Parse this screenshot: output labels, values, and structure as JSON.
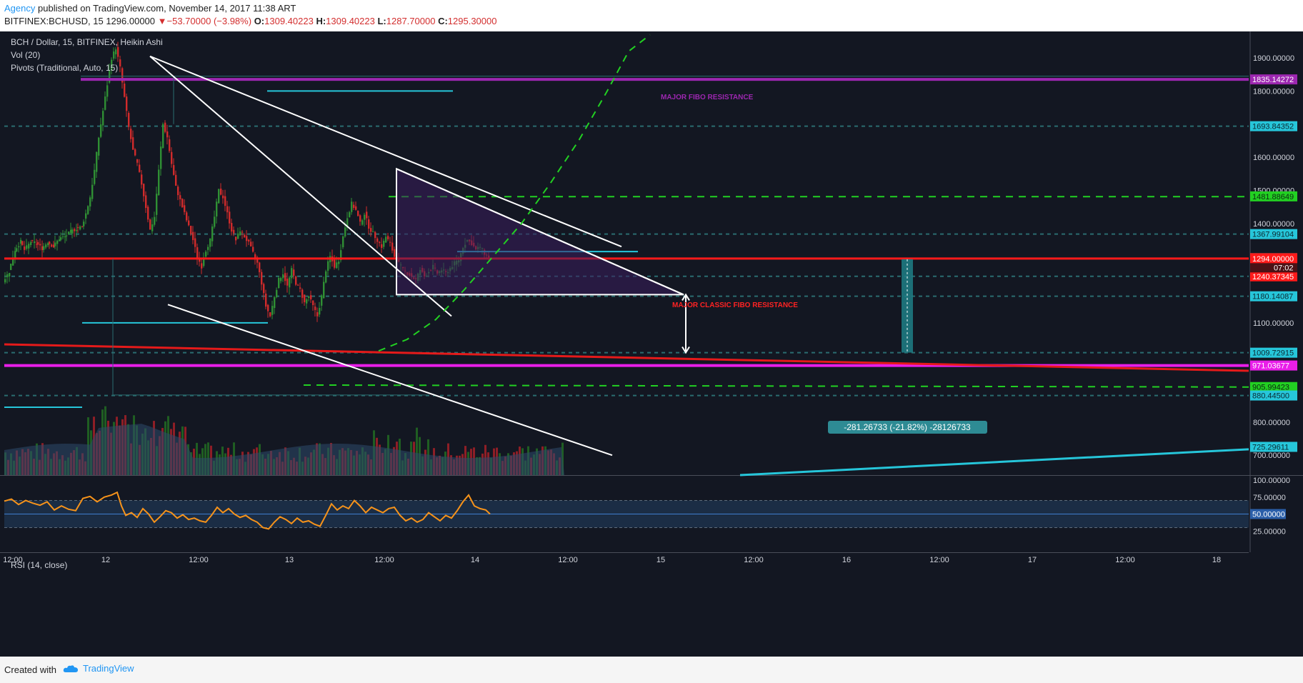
{
  "header": {
    "author": "Agency",
    "published_text": "published on TradingView.com, November 14, 2017 11:38 ART",
    "symbol": "BITFINEX:BCHUSD, 15",
    "price": "1296.00000",
    "change_arrow": "▼",
    "change": "−53.70000 (−3.98%)",
    "o_label": "O:",
    "o_value": "1309.40223",
    "h_label": "H:",
    "h_value": "1309.40223",
    "l_label": "L:",
    "l_value": "1287.70000",
    "c_label": "C:",
    "c_value": "1295.30000"
  },
  "legend": {
    "main": "BCH / Dollar, 15, BITFINEX, Heikin Ashi",
    "vol": "Vol (20)",
    "pivots": "Pivots (Traditional, Auto, 15)",
    "rsi": "RSI (14, close)"
  },
  "annotations": {
    "major_fibo": "MAJOR FIBO RESISTANCE",
    "major_classic": "MAJOR CLASSIC FIBO RESISTANCE",
    "measure": "-281.26733 (-21.82%) -28126733",
    "countdown": "07:02"
  },
  "footer": {
    "created_with": "Created with",
    "brand": "TradingView"
  },
  "colors": {
    "background": "#131722",
    "up": "#2e7d32",
    "down": "#c62828",
    "fibo_purple": "#9c27b0",
    "magenta": "#e91ee9",
    "red_level": "#ff1a1a",
    "green_dash": "#22d022",
    "cyan": "#26c6da",
    "rsi_line": "#f7931a"
  },
  "chart_data": {
    "type": "candlestick",
    "symbol": "BITFINEX:BCHUSD",
    "interval": "15",
    "style": "Heikin Ashi",
    "ylim": [
      640,
      1980
    ],
    "y_ticks": [
      "1900.00000",
      "1800.00000",
      "1600.00000",
      "1500.00000",
      "1400.00000",
      "1100.00000",
      "800.00000",
      "700.00000"
    ],
    "x_ticks": [
      "12:00",
      "12",
      "12:00",
      "13",
      "12:00",
      "14",
      "12:00",
      "15",
      "12:00",
      "16",
      "12:00",
      "17",
      "12:00",
      "18"
    ],
    "price_series": [
      [
        0,
        1225
      ],
      [
        8,
        1255
      ],
      [
        16,
        1320
      ],
      [
        24,
        1345
      ],
      [
        30,
        1320
      ],
      [
        38,
        1345
      ],
      [
        46,
        1340
      ],
      [
        54,
        1325
      ],
      [
        62,
        1345
      ],
      [
        70,
        1330
      ],
      [
        78,
        1355
      ],
      [
        86,
        1360
      ],
      [
        94,
        1375
      ],
      [
        102,
        1385
      ],
      [
        110,
        1390
      ],
      [
        116,
        1430
      ],
      [
        122,
        1480
      ],
      [
        128,
        1560
      ],
      [
        134,
        1660
      ],
      [
        140,
        1740
      ],
      [
        146,
        1820
      ],
      [
        152,
        1900
      ],
      [
        158,
        1930
      ],
      [
        164,
        1870
      ],
      [
        170,
        1780
      ],
      [
        176,
        1690
      ],
      [
        182,
        1620
      ],
      [
        188,
        1580
      ],
      [
        194,
        1520
      ],
      [
        200,
        1450
      ],
      [
        206,
        1380
      ],
      [
        212,
        1420
      ],
      [
        218,
        1560
      ],
      [
        224,
        1700
      ],
      [
        230,
        1660
      ],
      [
        236,
        1580
      ],
      [
        242,
        1510
      ],
      [
        248,
        1470
      ],
      [
        254,
        1430
      ],
      [
        260,
        1390
      ],
      [
        266,
        1350
      ],
      [
        272,
        1300
      ],
      [
        278,
        1270
      ],
      [
        284,
        1320
      ],
      [
        290,
        1350
      ],
      [
        296,
        1420
      ],
      [
        302,
        1500
      ],
      [
        308,
        1480
      ],
      [
        314,
        1430
      ],
      [
        320,
        1380
      ],
      [
        326,
        1350
      ],
      [
        332,
        1380
      ],
      [
        338,
        1360
      ],
      [
        344,
        1340
      ],
      [
        350,
        1310
      ],
      [
        356,
        1280
      ],
      [
        362,
        1220
      ],
      [
        368,
        1150
      ],
      [
        374,
        1120
      ],
      [
        380,
        1180
      ],
      [
        386,
        1230
      ],
      [
        392,
        1250
      ],
      [
        398,
        1210
      ],
      [
        404,
        1260
      ],
      [
        410,
        1220
      ],
      [
        416,
        1200
      ],
      [
        422,
        1160
      ],
      [
        428,
        1180
      ],
      [
        434,
        1150
      ],
      [
        440,
        1120
      ],
      [
        446,
        1180
      ],
      [
        452,
        1260
      ],
      [
        458,
        1300
      ],
      [
        464,
        1270
      ],
      [
        470,
        1290
      ],
      [
        476,
        1360
      ],
      [
        482,
        1420
      ],
      [
        488,
        1460
      ],
      [
        494,
        1440
      ],
      [
        500,
        1400
      ],
      [
        506,
        1430
      ],
      [
        512,
        1390
      ],
      [
        518,
        1370
      ],
      [
        524,
        1350
      ],
      [
        530,
        1330
      ],
      [
        536,
        1360
      ],
      [
        542,
        1340
      ],
      [
        548,
        1300
      ],
      [
        554,
        1280
      ],
      [
        560,
        1260
      ],
      [
        566,
        1250
      ],
      [
        572,
        1240
      ],
      [
        578,
        1230
      ],
      [
        584,
        1260
      ],
      [
        590,
        1240
      ],
      [
        596,
        1255
      ],
      [
        602,
        1270
      ],
      [
        608,
        1250
      ],
      [
        614,
        1260
      ],
      [
        620,
        1250
      ],
      [
        626,
        1265
      ],
      [
        632,
        1280
      ],
      [
        638,
        1290
      ],
      [
        644,
        1330
      ],
      [
        650,
        1350
      ],
      [
        656,
        1340
      ],
      [
        662,
        1320
      ],
      [
        668,
        1330
      ],
      [
        674,
        1310
      ],
      [
        680,
        1296
      ]
    ],
    "levels": [
      {
        "value": 1835.14272,
        "label": "1835.14272",
        "type": "fibo"
      },
      {
        "value": 1693.84352,
        "label": "1693.84352",
        "type": "pivot"
      },
      {
        "value": 1481.88649,
        "label": "1481.88649",
        "type": "green-dash"
      },
      {
        "value": 1367.99104,
        "label": "1367.99104",
        "type": "pivot"
      },
      {
        "value": 1295.3,
        "label": "1295.30000",
        "type": "last-price"
      },
      {
        "value": 1294.0,
        "label": "1294.00000",
        "type": "red-level"
      },
      {
        "value": 1240.37345,
        "label": "1240.37345",
        "type": "pivot-red"
      },
      {
        "value": 1180.14087,
        "label": "1180.14087",
        "type": "pivot"
      },
      {
        "value": 1009.72915,
        "label": "1009.72915",
        "type": "pivot"
      },
      {
        "value": 971.03677,
        "label": "971.03677",
        "type": "magenta"
      },
      {
        "value": 905.99423,
        "label": "905.99423",
        "type": "green-dash"
      },
      {
        "value": 880.445,
        "label": "880.44500",
        "type": "pivot"
      },
      {
        "value": 725.29611,
        "label": "725.29611",
        "type": "cyan-trend"
      }
    ],
    "rsi": {
      "ylim": [
        0,
        100
      ],
      "ticks": [
        "100.00000",
        "75.00000",
        "50.00000",
        "25.00000"
      ],
      "current_label": "50.00000",
      "values": [
        [
          0,
          69
        ],
        [
          10,
          72
        ],
        [
          20,
          64
        ],
        [
          30,
          70
        ],
        [
          40,
          66
        ],
        [
          50,
          63
        ],
        [
          60,
          68
        ],
        [
          70,
          56
        ],
        [
          80,
          62
        ],
        [
          90,
          57
        ],
        [
          100,
          55
        ],
        [
          110,
          73
        ],
        [
          120,
          76
        ],
        [
          130,
          68
        ],
        [
          140,
          75
        ],
        [
          150,
          78
        ],
        [
          158,
          82
        ],
        [
          164,
          62
        ],
        [
          170,
          48
        ],
        [
          178,
          52
        ],
        [
          186,
          45
        ],
        [
          194,
          58
        ],
        [
          202,
          50
        ],
        [
          210,
          38
        ],
        [
          218,
          46
        ],
        [
          226,
          55
        ],
        [
          234,
          52
        ],
        [
          242,
          44
        ],
        [
          250,
          49
        ],
        [
          258,
          42
        ],
        [
          266,
          44
        ],
        [
          274,
          40
        ],
        [
          282,
          38
        ],
        [
          290,
          48
        ],
        [
          298,
          60
        ],
        [
          306,
          52
        ],
        [
          314,
          58
        ],
        [
          322,
          50
        ],
        [
          330,
          45
        ],
        [
          338,
          48
        ],
        [
          346,
          42
        ],
        [
          354,
          38
        ],
        [
          362,
          30
        ],
        [
          370,
          28
        ],
        [
          378,
          38
        ],
        [
          386,
          46
        ],
        [
          394,
          42
        ],
        [
          402,
          36
        ],
        [
          410,
          44
        ],
        [
          418,
          38
        ],
        [
          426,
          40
        ],
        [
          434,
          35
        ],
        [
          442,
          32
        ],
        [
          450,
          48
        ],
        [
          458,
          65
        ],
        [
          466,
          56
        ],
        [
          474,
          62
        ],
        [
          482,
          58
        ],
        [
          490,
          70
        ],
        [
          498,
          62
        ],
        [
          506,
          52
        ],
        [
          514,
          60
        ],
        [
          522,
          56
        ],
        [
          530,
          52
        ],
        [
          538,
          58
        ],
        [
          546,
          60
        ],
        [
          554,
          48
        ],
        [
          562,
          40
        ],
        [
          570,
          44
        ],
        [
          578,
          38
        ],
        [
          586,
          42
        ],
        [
          594,
          52
        ],
        [
          602,
          46
        ],
        [
          610,
          40
        ],
        [
          618,
          48
        ],
        [
          626,
          44
        ],
        [
          634,
          55
        ],
        [
          642,
          68
        ],
        [
          650,
          78
        ],
        [
          658,
          62
        ],
        [
          666,
          58
        ],
        [
          674,
          56
        ],
        [
          680,
          50
        ]
      ]
    }
  }
}
